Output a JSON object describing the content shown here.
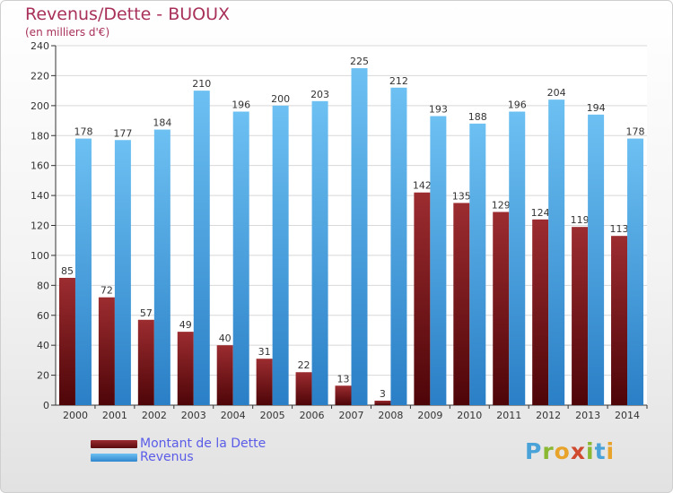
{
  "title": "Revenus/Dette - BUOUX",
  "subtitle": "(en milliers d'€)",
  "logo": {
    "text": "Proxiti",
    "colors": [
      "#4aa3d8",
      "#8ab833",
      "#e8a32b",
      "#d04a2f"
    ]
  },
  "chart_data": {
    "type": "bar",
    "categories": [
      "2000",
      "2001",
      "2002",
      "2003",
      "2004",
      "2005",
      "2006",
      "2007",
      "2008",
      "2009",
      "2010",
      "2011",
      "2012",
      "2013",
      "2014"
    ],
    "series": [
      {
        "name": "Montant de la Dette",
        "color": "#7a1418",
        "values": [
          85,
          72,
          57,
          49,
          40,
          31,
          22,
          13,
          3,
          142,
          135,
          129,
          124,
          119,
          113
        ]
      },
      {
        "name": "Revenus",
        "color": "#4aa3e2",
        "values": [
          178,
          177,
          184,
          210,
          196,
          200,
          203,
          225,
          212,
          193,
          188,
          196,
          204,
          194,
          178
        ]
      }
    ],
    "ylim": [
      0,
      240
    ],
    "yticks": [
      0,
      20,
      40,
      60,
      80,
      100,
      120,
      140,
      160,
      180,
      200,
      220,
      240
    ],
    "grid": true,
    "legend": "bottom-left"
  }
}
